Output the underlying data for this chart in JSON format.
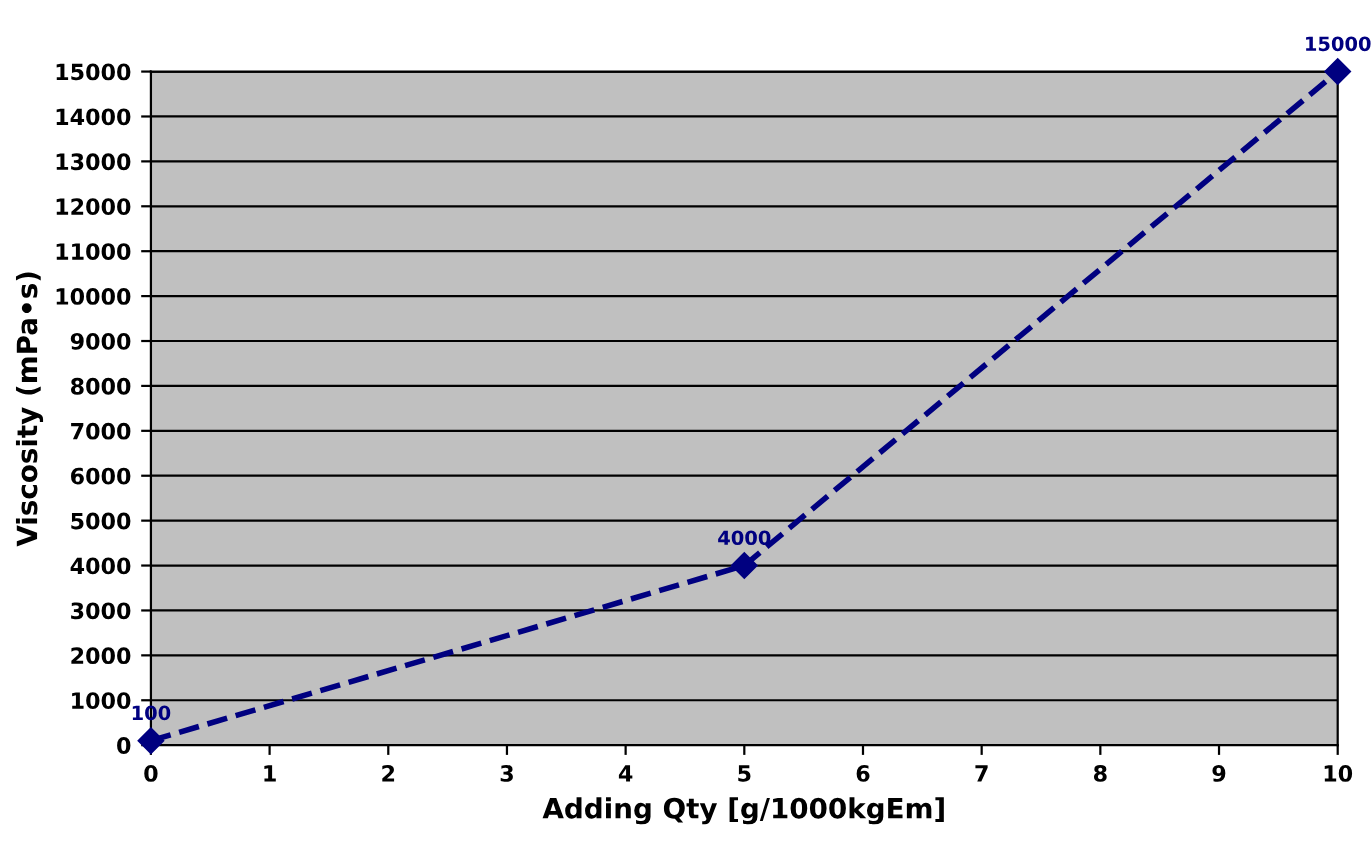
{
  "chart_data": {
    "type": "line",
    "xlabel": "Adding Qty [g/1000kgEm]",
    "ylabel": "Viscosity (mPa•s)",
    "x": [
      0,
      5,
      10
    ],
    "series": [
      {
        "color": "#000080",
        "values": [
          100,
          4000,
          15000
        ]
      }
    ],
    "xlim": [
      0,
      10
    ],
    "xticks": [
      0,
      1,
      2,
      3,
      4,
      5,
      6,
      7,
      8,
      9,
      10
    ],
    "ylim": [
      0,
      15000
    ],
    "yticks": [
      0,
      1000,
      2000,
      3000,
      4000,
      5000,
      6000,
      7000,
      8000,
      9000,
      10000,
      11000,
      12000,
      13000,
      14000,
      15000
    ],
    "grid": "y",
    "marker": "diamond",
    "line_style": "dashed",
    "data_labels": true,
    "legend": false
  }
}
